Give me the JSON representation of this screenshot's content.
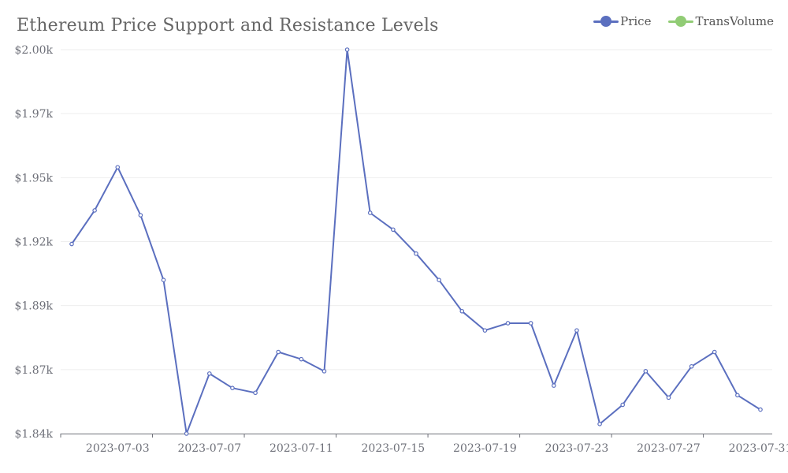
{
  "chart_data": {
    "type": "line",
    "title": "Ethereum Price Support and Resistance Levels",
    "legend": [
      {
        "name": "Price",
        "color": "#5b6fbf"
      },
      {
        "name": "TransVolume",
        "color": "#91cc75"
      }
    ],
    "legend_placement": "top-right",
    "y_ticks": [
      "$1.84k",
      "$1.87k",
      "$1.89k",
      "$1.92k",
      "$1.95k",
      "$1.97k",
      "$2.00k"
    ],
    "x_ticks": [
      "2023-07-03",
      "2023-07-07",
      "2023-07-11",
      "2023-07-15",
      "2023-07-19",
      "2023-07-23",
      "2023-07-27",
      "2023-07-31"
    ],
    "ylim": [
      1840,
      2000
    ],
    "grid": true,
    "series": [
      {
        "name": "Price",
        "color": "#5b6fbf",
        "x": [
          "2023-07-01",
          "2023-07-02",
          "2023-07-03",
          "2023-07-04",
          "2023-07-05",
          "2023-07-06",
          "2023-07-07",
          "2023-07-08",
          "2023-07-09",
          "2023-07-10",
          "2023-07-11",
          "2023-07-12",
          "2023-07-13",
          "2023-07-14",
          "2023-07-15",
          "2023-07-16",
          "2023-07-17",
          "2023-07-18",
          "2023-07-19",
          "2023-07-20",
          "2023-07-21",
          "2023-07-22",
          "2023-07-23",
          "2023-07-24",
          "2023-07-25",
          "2023-07-26",
          "2023-07-27",
          "2023-07-28",
          "2023-07-29",
          "2023-07-30",
          "2023-07-31"
        ],
        "values": [
          1919,
          1933,
          1951,
          1931,
          1904,
          1840,
          1865,
          1859,
          1857,
          1874,
          1871,
          1866,
          2000,
          1932,
          1925,
          1915,
          1904,
          1891,
          1883,
          1886,
          1886,
          1860,
          1883,
          1844,
          1852,
          1866,
          1855,
          1868,
          1874,
          1856,
          1850
        ]
      }
    ]
  }
}
